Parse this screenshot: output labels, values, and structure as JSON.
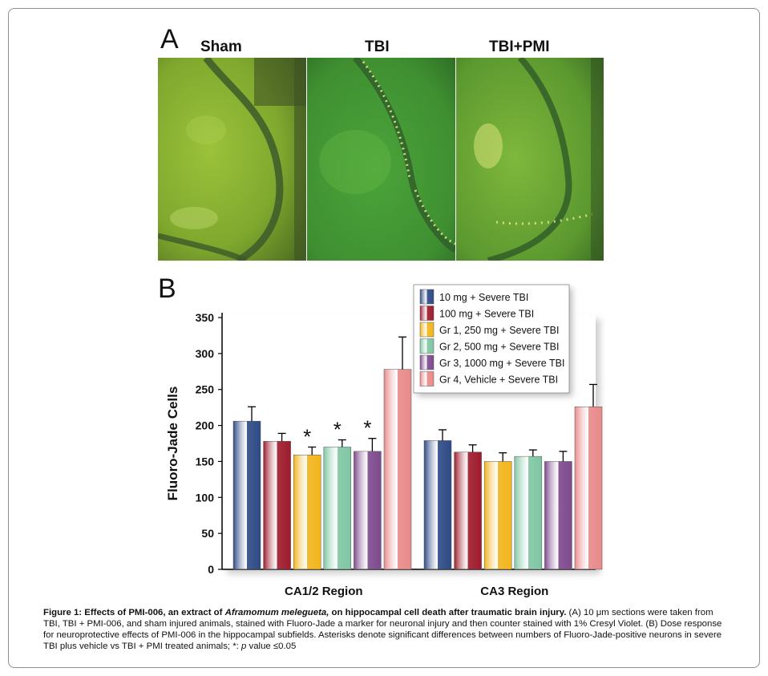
{
  "panel_a": {
    "letter": "A",
    "panels": [
      {
        "label": "Sham"
      },
      {
        "label": "TBI"
      },
      {
        "label": "TBI+PMI"
      }
    ]
  },
  "panel_b": {
    "letter": "B"
  },
  "chart_data": {
    "type": "bar",
    "title": "",
    "xlabel": "",
    "ylabel": "Fluoro-Jade Cells",
    "ylim": [
      0,
      350
    ],
    "yticks": [
      "0",
      "50",
      "100",
      "150",
      "200",
      "250",
      "300",
      "350"
    ],
    "categories": [
      "CA1/2 Region",
      "CA3 Region"
    ],
    "legend_position": "top-right",
    "series": [
      {
        "name": "10 mg + Severe TBI",
        "color": "#2e4a86",
        "values": [
          206,
          179
        ],
        "errors": [
          20,
          15
        ],
        "significant": [
          false,
          false
        ]
      },
      {
        "name": "100 mg + Severe TBI",
        "color": "#9e1b2c",
        "values": [
          178,
          163
        ],
        "errors": [
          11,
          10
        ],
        "significant": [
          false,
          false
        ]
      },
      {
        "name": "Gr 1, 250 mg + Severe TBI",
        "color": "#f2b51c",
        "values": [
          159,
          150
        ],
        "errors": [
          11,
          12
        ],
        "significant": [
          true,
          false
        ]
      },
      {
        "name": "Gr 2, 500 mg + Severe TBI",
        "color": "#7fc6a4",
        "values": [
          170,
          157
        ],
        "errors": [
          10,
          9
        ],
        "significant": [
          true,
          false
        ]
      },
      {
        "name": "Gr 3, 1000 mg + Severe TBI",
        "color": "#7e4a8e",
        "values": [
          164,
          150
        ],
        "errors": [
          18,
          14
        ],
        "significant": [
          true,
          false
        ]
      },
      {
        "name": "Gr 4, Vehicle + Severe TBI",
        "color": "#e98a8a",
        "values": [
          278,
          226
        ],
        "errors": [
          45,
          31
        ],
        "significant": [
          false,
          false
        ]
      }
    ],
    "significance_marker": "*"
  },
  "caption": {
    "bold_prefix": "Figure 1: Effects of PMI-006, an extract of ",
    "bold_italic": "Aframomum melegueta,",
    "bold_suffix": " on hippocampal cell death after traumatic brain injury.",
    "text1": " (A) 10 μm sections were taken from TBI, TBI + PMI-006, and sham injured animals, stained with Fluoro-Jade a marker for neuronal injury and then counter stained with 1% Cresyl Violet.  (B) Dose response for neuroprotective effects of PMI-006 in the hippocampal subfields. Asterisks denote significant differences between numbers of Fluoro-Jade-positive neurons in severe TBI plus vehicle vs TBI + PMI treated animals; *: ",
    "p_italic": "p",
    "text2": " value ≤0.05"
  }
}
